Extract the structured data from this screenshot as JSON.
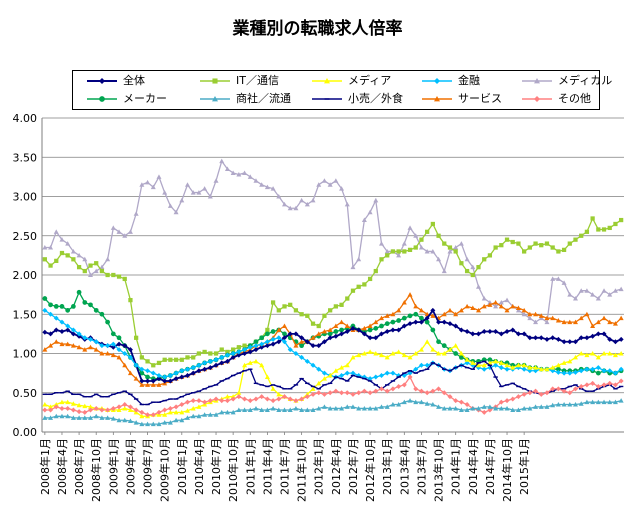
{
  "chart_data": {
    "type": "line",
    "title": "業種別の転職求人倍率",
    "xlabel": "",
    "ylabel": "",
    "ylim": [
      0,
      4
    ],
    "yticks": [
      "0.00",
      "0.50",
      "1.00",
      "1.50",
      "2.00",
      "2.50",
      "3.00",
      "3.50",
      "4.00"
    ],
    "grid": true,
    "legend_position": "top",
    "x_tick_labels": [
      "2008年1月",
      "2008年4月",
      "2008年7月",
      "2008年10月",
      "2009年1月",
      "2009年4月",
      "2009年7月",
      "2009年10月",
      "2010年1月",
      "2010年4月",
      "2010年7月",
      "2010年10月",
      "2011年1月",
      "2011年4月",
      "2011年7月",
      "2011年10月",
      "2012年1月",
      "2012年4月",
      "2012年7月",
      "2012年10月",
      "2013年1月",
      "2013年4月",
      "2013年7月",
      "2013年10月",
      "2014年1月",
      "2014年4月",
      "2014年7月",
      "2014年10月",
      "2015年1月"
    ],
    "series": [
      {
        "name": "全体",
        "color": "#000080",
        "marker": "diamond",
        "values": [
          1.27,
          1.25,
          1.3,
          1.28,
          1.3,
          1.25,
          1.22,
          1.18,
          1.2,
          1.15,
          1.12,
          1.1,
          1.08,
          1.12,
          1.1,
          1.05,
          0.85,
          0.65,
          0.65,
          0.65,
          0.68,
          0.65,
          0.65,
          0.68,
          0.7,
          0.72,
          0.75,
          0.78,
          0.8,
          0.82,
          0.85,
          0.88,
          0.9,
          0.95,
          0.98,
          1.0,
          1.02,
          1.05,
          1.08,
          1.1,
          1.12,
          1.15,
          1.2,
          1.25,
          1.25,
          1.2,
          1.15,
          1.1,
          1.1,
          1.15,
          1.2,
          1.22,
          1.25,
          1.28,
          1.32,
          1.3,
          1.25,
          1.2,
          1.2,
          1.25,
          1.28,
          1.3,
          1.3,
          1.35,
          1.38,
          1.4,
          1.4,
          1.45,
          1.55,
          1.4,
          1.4,
          1.38,
          1.35,
          1.3,
          1.28,
          1.25,
          1.25,
          1.28,
          1.28,
          1.28,
          1.25,
          1.28,
          1.3,
          1.25,
          1.25,
          1.2,
          1.2,
          1.2,
          1.18,
          1.2,
          1.18,
          1.15,
          1.15,
          1.15,
          1.2,
          1.2,
          1.22,
          1.25,
          1.25,
          1.18,
          1.15,
          1.18
        ]
      },
      {
        "name": "IT／通信",
        "color": "#9ACD32",
        "marker": "square",
        "values": [
          2.2,
          2.12,
          2.18,
          2.28,
          2.25,
          2.2,
          2.1,
          2.05,
          2.12,
          2.15,
          2.05,
          2.0,
          2.0,
          1.98,
          1.95,
          1.68,
          1.2,
          0.95,
          0.9,
          0.85,
          0.88,
          0.92,
          0.92,
          0.92,
          0.92,
          0.95,
          0.95,
          1.0,
          1.02,
          1.0,
          1.0,
          1.05,
          1.02,
          1.05,
          1.08,
          1.1,
          1.1,
          1.15,
          1.2,
          1.3,
          1.65,
          1.55,
          1.6,
          1.62,
          1.55,
          1.5,
          1.48,
          1.38,
          1.35,
          1.48,
          1.55,
          1.6,
          1.62,
          1.7,
          1.8,
          1.85,
          1.88,
          1.95,
          2.05,
          2.2,
          2.25,
          2.3,
          2.3,
          2.3,
          2.32,
          2.35,
          2.45,
          2.55,
          2.65,
          2.5,
          2.4,
          2.35,
          2.3,
          2.15,
          2.05,
          2.0,
          2.1,
          2.2,
          2.25,
          2.35,
          2.38,
          2.45,
          2.42,
          2.4,
          2.3,
          2.35,
          2.4,
          2.38,
          2.4,
          2.35,
          2.3,
          2.32,
          2.4,
          2.45,
          2.5,
          2.55,
          2.72,
          2.58,
          2.58,
          2.6,
          2.65,
          2.7
        ]
      },
      {
        "name": "メディア",
        "color": "#FFFF00",
        "marker": "triangle",
        "values": [
          0.35,
          0.32,
          0.35,
          0.38,
          0.38,
          0.36,
          0.34,
          0.33,
          0.32,
          0.3,
          0.3,
          0.28,
          0.28,
          0.28,
          0.3,
          0.28,
          0.25,
          0.2,
          0.2,
          0.22,
          0.22,
          0.22,
          0.25,
          0.25,
          0.25,
          0.27,
          0.3,
          0.32,
          0.35,
          0.38,
          0.4,
          0.42,
          0.45,
          0.45,
          0.5,
          0.85,
          0.88,
          0.9,
          0.85,
          0.7,
          0.55,
          0.48,
          0.45,
          0.42,
          0.4,
          0.42,
          0.48,
          0.55,
          0.62,
          0.68,
          0.72,
          0.78,
          0.82,
          0.85,
          0.95,
          0.98,
          1.0,
          1.02,
          1.0,
          0.98,
          0.95,
          1.0,
          1.02,
          0.98,
          0.95,
          1.0,
          1.05,
          1.15,
          1.05,
          1.0,
          1.0,
          1.05,
          1.1,
          1.0,
          0.92,
          0.88,
          0.85,
          0.85,
          0.88,
          0.9,
          0.88,
          0.85,
          0.82,
          0.85,
          0.85,
          0.82,
          0.82,
          0.8,
          0.8,
          0.82,
          0.85,
          0.88,
          0.9,
          0.95,
          1.0,
          0.98,
          1.0,
          0.95,
          1.0,
          1.0,
          0.98,
          1.0
        ]
      },
      {
        "name": "金融",
        "color": "#00BFFF",
        "marker": "diamond",
        "values": [
          1.55,
          1.5,
          1.45,
          1.4,
          1.35,
          1.3,
          1.25,
          1.2,
          1.18,
          1.15,
          1.1,
          1.1,
          1.12,
          1.05,
          1.0,
          0.95,
          0.85,
          0.8,
          0.78,
          0.75,
          0.72,
          0.7,
          0.72,
          0.75,
          0.78,
          0.8,
          0.82,
          0.85,
          0.88,
          0.9,
          0.92,
          0.95,
          0.98,
          1.0,
          1.02,
          1.05,
          1.08,
          1.1,
          1.12,
          1.15,
          1.18,
          1.2,
          1.15,
          1.05,
          1.0,
          0.95,
          0.9,
          0.85,
          0.8,
          0.75,
          0.72,
          0.7,
          0.72,
          0.75,
          0.75,
          0.72,
          0.7,
          0.68,
          0.7,
          0.72,
          0.75,
          0.75,
          0.72,
          0.72,
          0.75,
          0.8,
          0.85,
          0.85,
          0.88,
          0.85,
          0.8,
          0.78,
          0.82,
          0.85,
          0.88,
          0.85,
          0.82,
          0.8,
          0.82,
          0.85,
          0.82,
          0.8,
          0.8,
          0.82,
          0.8,
          0.78,
          0.78,
          0.8,
          0.8,
          0.78,
          0.76,
          0.75,
          0.75,
          0.76,
          0.78,
          0.8,
          0.8,
          0.82,
          0.78,
          0.78,
          0.75,
          0.8
        ]
      },
      {
        "name": "メディカル",
        "color": "#B0A8C8",
        "marker": "triangle",
        "values": [
          2.35,
          2.35,
          2.55,
          2.45,
          2.4,
          2.3,
          2.25,
          2.2,
          2.0,
          2.05,
          2.1,
          2.2,
          2.6,
          2.55,
          2.5,
          2.55,
          2.78,
          3.15,
          3.18,
          3.12,
          3.25,
          3.05,
          2.88,
          2.8,
          2.95,
          3.15,
          3.05,
          3.05,
          3.1,
          3.0,
          3.2,
          3.45,
          3.35,
          3.3,
          3.28,
          3.3,
          3.25,
          3.2,
          3.15,
          3.12,
          3.1,
          3.0,
          2.9,
          2.85,
          2.85,
          2.95,
          2.9,
          2.95,
          3.15,
          3.2,
          3.15,
          3.2,
          3.1,
          2.9,
          2.1,
          2.2,
          2.7,
          2.8,
          2.95,
          2.4,
          2.3,
          2.3,
          2.25,
          2.4,
          2.6,
          2.5,
          2.35,
          2.3,
          2.3,
          2.2,
          2.05,
          2.3,
          2.35,
          2.4,
          2.2,
          2.1,
          1.85,
          1.7,
          1.65,
          1.6,
          1.65,
          1.68,
          1.6,
          1.55,
          1.5,
          1.45,
          1.4,
          1.45,
          1.4,
          1.95,
          1.95,
          1.9,
          1.75,
          1.7,
          1.8,
          1.8,
          1.75,
          1.7,
          1.8,
          1.75,
          1.8,
          1.82
        ]
      },
      {
        "name": "メーカー",
        "color": "#00A550",
        "marker": "circle",
        "values": [
          1.7,
          1.62,
          1.6,
          1.6,
          1.55,
          1.6,
          1.78,
          1.65,
          1.62,
          1.55,
          1.5,
          1.4,
          1.25,
          1.2,
          1.1,
          0.95,
          0.85,
          0.75,
          0.7,
          0.68,
          0.68,
          0.7,
          0.72,
          0.75,
          0.78,
          0.8,
          0.82,
          0.85,
          0.88,
          0.9,
          0.92,
          0.95,
          0.98,
          1.0,
          1.02,
          1.05,
          1.1,
          1.15,
          1.2,
          1.25,
          1.28,
          1.3,
          1.25,
          1.2,
          1.15,
          1.1,
          1.15,
          1.2,
          1.22,
          1.25,
          1.25,
          1.28,
          1.3,
          1.32,
          1.35,
          1.3,
          1.28,
          1.3,
          1.32,
          1.35,
          1.38,
          1.4,
          1.42,
          1.45,
          1.48,
          1.5,
          1.45,
          1.4,
          1.3,
          1.15,
          1.1,
          1.05,
          1.0,
          0.95,
          0.92,
          0.9,
          0.9,
          0.92,
          0.92,
          0.9,
          0.88,
          0.88,
          0.85,
          0.85,
          0.85,
          0.82,
          0.82,
          0.8,
          0.8,
          0.8,
          0.8,
          0.78,
          0.78,
          0.78,
          0.8,
          0.8,
          0.78,
          0.75,
          0.78,
          0.75,
          0.75,
          0.78
        ]
      },
      {
        "name": "商社／流通",
        "color": "#4BACC6",
        "marker": "triangle",
        "values": [
          0.18,
          0.18,
          0.2,
          0.2,
          0.2,
          0.18,
          0.18,
          0.18,
          0.18,
          0.2,
          0.18,
          0.18,
          0.17,
          0.15,
          0.15,
          0.14,
          0.12,
          0.1,
          0.1,
          0.1,
          0.1,
          0.12,
          0.12,
          0.15,
          0.15,
          0.18,
          0.2,
          0.2,
          0.22,
          0.22,
          0.22,
          0.25,
          0.25,
          0.25,
          0.28,
          0.28,
          0.28,
          0.3,
          0.28,
          0.28,
          0.3,
          0.28,
          0.28,
          0.28,
          0.3,
          0.28,
          0.28,
          0.28,
          0.3,
          0.32,
          0.3,
          0.3,
          0.3,
          0.32,
          0.32,
          0.3,
          0.3,
          0.3,
          0.3,
          0.32,
          0.32,
          0.35,
          0.35,
          0.38,
          0.4,
          0.38,
          0.38,
          0.36,
          0.35,
          0.32,
          0.3,
          0.3,
          0.3,
          0.28,
          0.28,
          0.3,
          0.3,
          0.32,
          0.32,
          0.3,
          0.3,
          0.3,
          0.28,
          0.28,
          0.3,
          0.3,
          0.32,
          0.32,
          0.32,
          0.34,
          0.35,
          0.35,
          0.35,
          0.35,
          0.36,
          0.38,
          0.38,
          0.38,
          0.38,
          0.38,
          0.38,
          0.4
        ]
      },
      {
        "name": "小売／外食",
        "color": "#000080",
        "marker": "dash",
        "values": [
          0.48,
          0.48,
          0.5,
          0.5,
          0.52,
          0.48,
          0.48,
          0.45,
          0.45,
          0.48,
          0.45,
          0.45,
          0.48,
          0.5,
          0.52,
          0.48,
          0.42,
          0.35,
          0.35,
          0.38,
          0.38,
          0.4,
          0.42,
          0.42,
          0.45,
          0.48,
          0.5,
          0.52,
          0.55,
          0.58,
          0.6,
          0.65,
          0.68,
          0.72,
          0.75,
          0.78,
          0.8,
          0.62,
          0.6,
          0.58,
          0.6,
          0.58,
          0.55,
          0.55,
          0.6,
          0.68,
          0.62,
          0.58,
          0.55,
          0.6,
          0.62,
          0.7,
          0.68,
          0.65,
          0.72,
          0.7,
          0.68,
          0.65,
          0.6,
          0.55,
          0.6,
          0.65,
          0.7,
          0.75,
          0.78,
          0.75,
          0.78,
          0.8,
          0.88,
          0.85,
          0.8,
          0.78,
          0.82,
          0.85,
          0.82,
          0.8,
          0.88,
          0.9,
          0.85,
          0.7,
          0.58,
          0.6,
          0.62,
          0.58,
          0.55,
          0.52,
          0.5,
          0.48,
          0.5,
          0.52,
          0.55,
          0.55,
          0.58,
          0.6,
          0.55,
          0.52,
          0.52,
          0.55,
          0.58,
          0.6,
          0.55,
          0.58
        ]
      },
      {
        "name": "サービス",
        "color": "#F07000",
        "marker": "triangle",
        "values": [
          1.05,
          1.1,
          1.15,
          1.12,
          1.12,
          1.1,
          1.08,
          1.05,
          1.08,
          1.05,
          1.0,
          1.0,
          0.98,
          0.95,
          0.85,
          0.75,
          0.68,
          0.6,
          0.6,
          0.6,
          0.6,
          0.62,
          0.65,
          0.68,
          0.7,
          0.72,
          0.75,
          0.78,
          0.8,
          0.82,
          0.85,
          0.88,
          0.9,
          0.95,
          1.0,
          1.02,
          1.05,
          1.1,
          1.12,
          1.15,
          1.2,
          1.3,
          1.35,
          1.25,
          1.1,
          1.15,
          1.15,
          1.2,
          1.25,
          1.28,
          1.3,
          1.35,
          1.4,
          1.35,
          1.3,
          1.3,
          1.32,
          1.35,
          1.4,
          1.45,
          1.48,
          1.5,
          1.55,
          1.65,
          1.75,
          1.6,
          1.55,
          1.5,
          1.48,
          1.45,
          1.5,
          1.55,
          1.5,
          1.55,
          1.6,
          1.58,
          1.55,
          1.6,
          1.62,
          1.65,
          1.6,
          1.55,
          1.6,
          1.58,
          1.55,
          1.5,
          1.5,
          1.48,
          1.45,
          1.45,
          1.42,
          1.4,
          1.4,
          1.4,
          1.45,
          1.5,
          1.35,
          1.4,
          1.45,
          1.4,
          1.38,
          1.45
        ]
      },
      {
        "name": "その他",
        "color": "#FF8080",
        "marker": "diamond",
        "values": [
          0.28,
          0.28,
          0.32,
          0.3,
          0.3,
          0.28,
          0.26,
          0.25,
          0.28,
          0.3,
          0.28,
          0.28,
          0.3,
          0.32,
          0.35,
          0.32,
          0.28,
          0.25,
          0.22,
          0.22,
          0.25,
          0.28,
          0.3,
          0.32,
          0.35,
          0.38,
          0.4,
          0.4,
          0.38,
          0.4,
          0.42,
          0.4,
          0.4,
          0.42,
          0.45,
          0.42,
          0.4,
          0.42,
          0.45,
          0.42,
          0.4,
          0.42,
          0.45,
          0.42,
          0.4,
          0.42,
          0.45,
          0.48,
          0.5,
          0.48,
          0.5,
          0.52,
          0.5,
          0.5,
          0.48,
          0.5,
          0.52,
          0.5,
          0.52,
          0.55,
          0.52,
          0.55,
          0.58,
          0.6,
          0.7,
          0.55,
          0.52,
          0.5,
          0.52,
          0.55,
          0.5,
          0.45,
          0.4,
          0.38,
          0.35,
          0.3,
          0.28,
          0.25,
          0.28,
          0.32,
          0.38,
          0.4,
          0.42,
          0.45,
          0.48,
          0.5,
          0.52,
          0.48,
          0.5,
          0.55,
          0.55,
          0.52,
          0.5,
          0.55,
          0.58,
          0.6,
          0.62,
          0.58,
          0.6,
          0.62,
          0.6,
          0.65
        ]
      }
    ]
  }
}
